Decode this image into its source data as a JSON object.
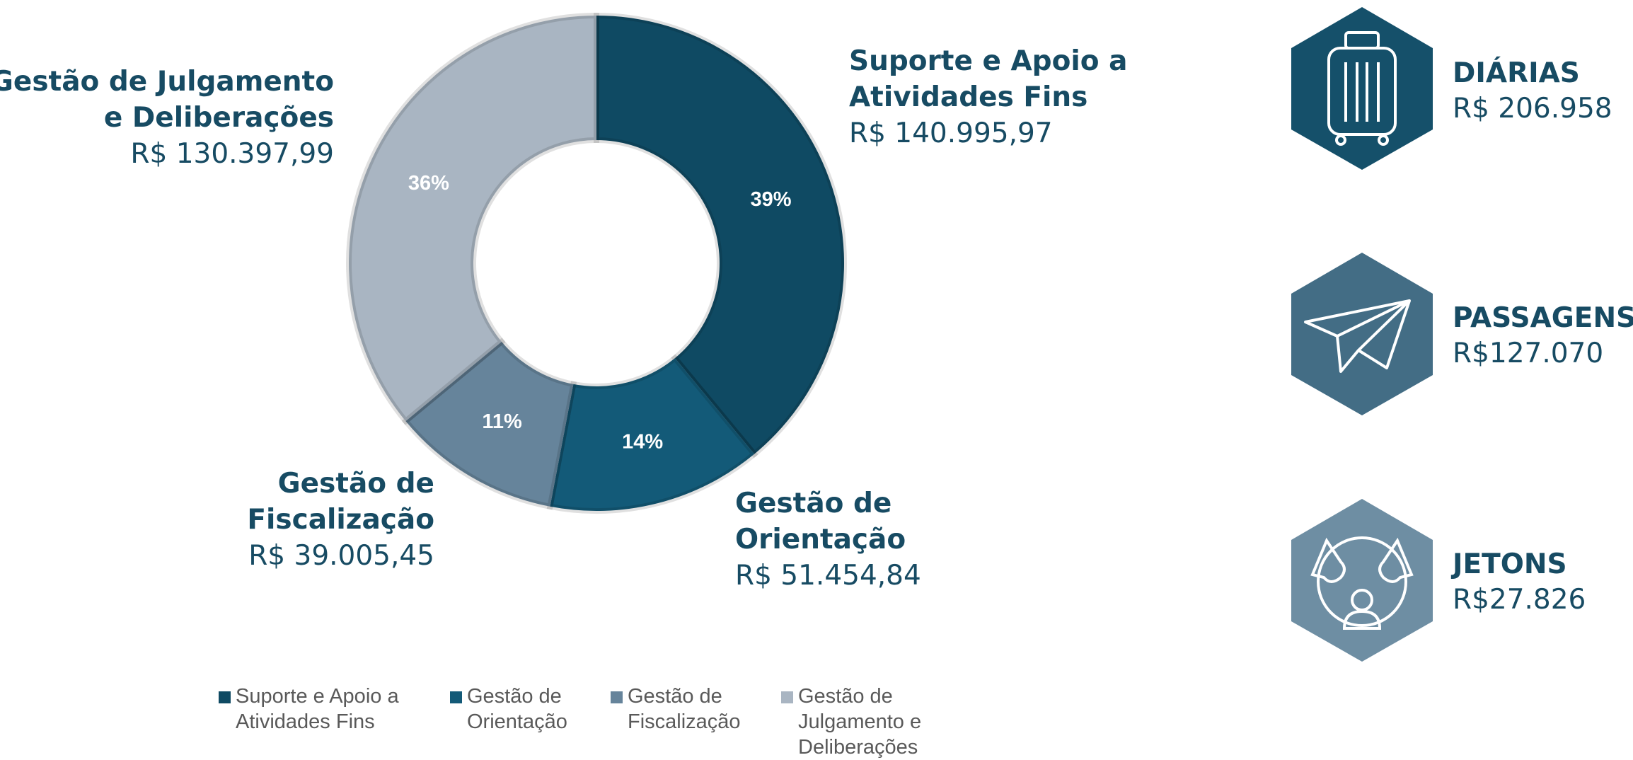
{
  "chart_data": {
    "type": "pie",
    "categories": [
      "Suporte e Apoio a Atividades Fins",
      "Gestão de Orientação",
      "Gestão de Fiscalização",
      "Gestão de Julgamento e Deliberações"
    ],
    "values": [
      39,
      14,
      11,
      36
    ],
    "value_labels": [
      "39%",
      "14%",
      "11%",
      "36%"
    ],
    "colors": [
      "#0f4a63",
      "#135a78",
      "#66849b",
      "#a9b5c2"
    ],
    "donut": true,
    "legend": "bottom",
    "callouts": [
      {
        "lines": [
          "Suporte e Apoio a",
          "Atividades Fins"
        ],
        "amount": "R$ 140.995,97"
      },
      {
        "lines": [
          "Gestão de",
          "Orientação"
        ],
        "amount": "R$ 51.454,84"
      },
      {
        "lines": [
          "Gestão de",
          "Fiscalização"
        ],
        "amount": "R$ 39.005,45"
      },
      {
        "lines": [
          "Gestão de Julgamento",
          "e Deliberações"
        ],
        "amount": "R$ 130.397,99"
      }
    ]
  },
  "summary": [
    {
      "title": "DIÁRIAS",
      "value": "R$ 206.958"
    },
    {
      "title": "PASSAGENS",
      "value": "R$127.070"
    },
    {
      "title": "JETONS",
      "value": "R$27.826"
    }
  ]
}
